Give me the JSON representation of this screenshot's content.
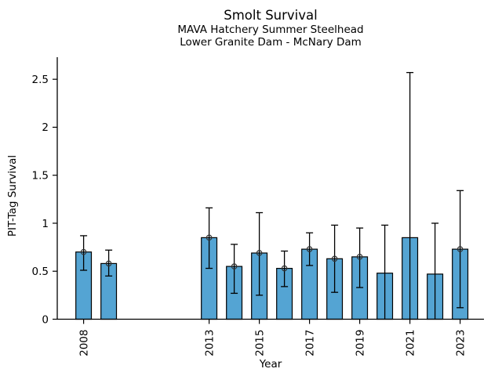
{
  "figure": {
    "background": "#ffffff",
    "text_color": "#000000"
  },
  "chart_data": {
    "type": "bar",
    "title": "Smolt Survival",
    "subtitle_lines": [
      "MAVA Hatchery Summer Steelhead",
      "Lower Granite Dam - McNary Dam"
    ],
    "xlabel": "Year",
    "ylabel": "PIT-Tag Survival",
    "xlim": [
      2006.95,
      2023.95
    ],
    "ylim": [
      0,
      2.73
    ],
    "yticks": [
      0,
      0.5,
      1,
      1.5,
      2,
      2.5
    ],
    "ytick_labels": [
      "0",
      "0.5",
      "1",
      "1.5",
      "2",
      "2.5"
    ],
    "xtick_years": [
      2008,
      2013,
      2015,
      2017,
      2019,
      2021,
      2023
    ],
    "xtick_labels": [
      "2008",
      "2013",
      "2015",
      "2017",
      "2019",
      "2021",
      "2023"
    ],
    "grid": false,
    "legend": null,
    "bar_width_years": 0.62,
    "marker_style": "open-circle",
    "colors": {
      "bar_fill": "#54a4d3",
      "bar_edge": "#000000",
      "error_bar": "#000000",
      "marker_edge": "#333333",
      "axis": "#000000"
    },
    "series": [
      {
        "year": 2008,
        "value": 0.7,
        "ci_low": 0.51,
        "ci_high": 0.87,
        "marker": true
      },
      {
        "year": 2009,
        "value": 0.58,
        "ci_low": 0.45,
        "ci_high": 0.72,
        "marker": true
      },
      {
        "year": 2013,
        "value": 0.85,
        "ci_low": 0.53,
        "ci_high": 1.16,
        "marker": true
      },
      {
        "year": 2014,
        "value": 0.55,
        "ci_low": 0.27,
        "ci_high": 0.78,
        "marker": true
      },
      {
        "year": 2015,
        "value": 0.69,
        "ci_low": 0.25,
        "ci_high": 1.11,
        "marker": true
      },
      {
        "year": 2016,
        "value": 0.53,
        "ci_low": 0.34,
        "ci_high": 0.71,
        "marker": true
      },
      {
        "year": 2017,
        "value": 0.73,
        "ci_low": 0.56,
        "ci_high": 0.9,
        "marker": true
      },
      {
        "year": 2018,
        "value": 0.63,
        "ci_low": 0.28,
        "ci_high": 0.98,
        "marker": true
      },
      {
        "year": 2019,
        "value": 0.65,
        "ci_low": 0.33,
        "ci_high": 0.95,
        "marker": true
      },
      {
        "year": 2020,
        "value": 0.48,
        "ci_low": 0.0,
        "ci_high": 0.98,
        "marker": false
      },
      {
        "year": 2021,
        "value": 0.85,
        "ci_low": 0.0,
        "ci_high": 2.57,
        "marker": false
      },
      {
        "year": 2022,
        "value": 0.47,
        "ci_low": 0.0,
        "ci_high": 1.0,
        "marker": false
      },
      {
        "year": 2023,
        "value": 0.73,
        "ci_low": 0.12,
        "ci_high": 1.34,
        "marker": true
      }
    ]
  }
}
